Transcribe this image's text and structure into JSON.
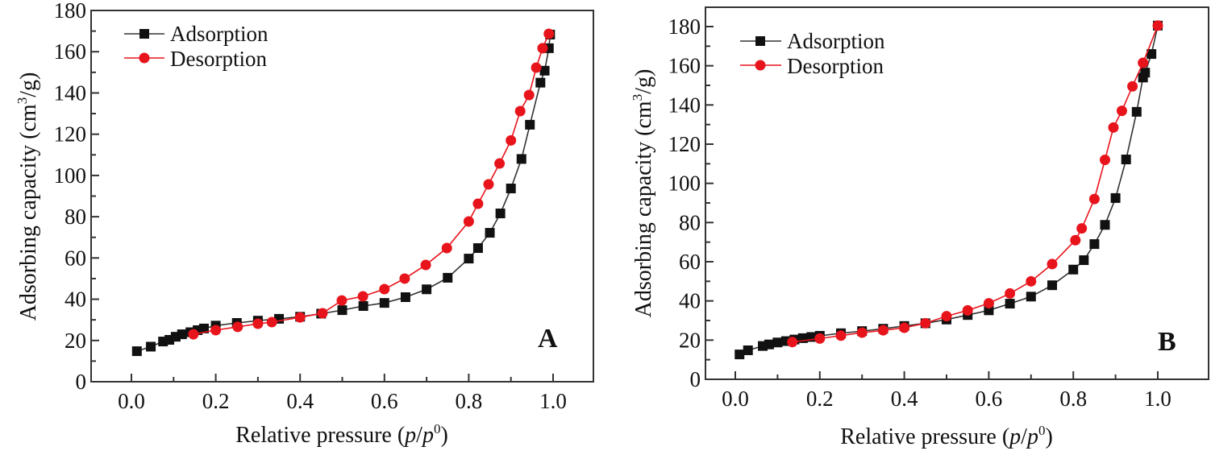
{
  "colors": {
    "adsorption": "#111111",
    "desorption": "#e8141c",
    "axis": "#333333"
  },
  "chart_data": [
    {
      "type": "line",
      "panel_label": "A",
      "xlabel_main": "Relative pressure (",
      "xlabel_italic1": "p",
      "xlabel_slash": "/",
      "xlabel_italic2": "p",
      "xlabel_sup": "0",
      "xlabel_close": ")",
      "ylabel_main": "Adsorbing capacity (cm",
      "ylabel_sup": "3",
      "ylabel_close": "/g)",
      "xlim": [
        -0.1,
        1.1
      ],
      "ylim": [
        0,
        180
      ],
      "xticks": [
        "0.0",
        "0.2",
        "0.4",
        "0.6",
        "0.8",
        "1.0"
      ],
      "xtick_values": [
        0.0,
        0.2,
        0.4,
        0.6,
        0.8,
        1.0
      ],
      "yticks": [
        "0",
        "20",
        "40",
        "60",
        "80",
        "100",
        "120",
        "140",
        "160",
        "180"
      ],
      "ytick_values": [
        0,
        20,
        40,
        60,
        80,
        100,
        120,
        140,
        160,
        180
      ],
      "grid": false,
      "legend_position": "top-left",
      "series": [
        {
          "name": "Adsorption",
          "marker": "square",
          "x": [
            0.013,
            0.046,
            0.075,
            0.09,
            0.105,
            0.12,
            0.14,
            0.157,
            0.172,
            0.2,
            0.25,
            0.3,
            0.35,
            0.4,
            0.45,
            0.5,
            0.55,
            0.6,
            0.65,
            0.7,
            0.75,
            0.8,
            0.822,
            0.85,
            0.875,
            0.9,
            0.925,
            0.945,
            0.97,
            0.98,
            0.99,
            0.993
          ],
          "y": [
            14.8,
            17.0,
            19.5,
            20.3,
            21.8,
            23.0,
            24.0,
            25.0,
            25.8,
            27.2,
            28.5,
            29.6,
            30.5,
            31.5,
            33.0,
            34.7,
            36.7,
            38.2,
            41.0,
            44.8,
            50.4,
            59.7,
            64.8,
            72.2,
            81.6,
            93.7,
            108.0,
            124.6,
            145.0,
            150.8,
            161.7,
            168.3
          ]
        },
        {
          "name": "Desorption",
          "marker": "circle",
          "x": [
            0.99,
            0.975,
            0.96,
            0.943,
            0.922,
            0.9,
            0.873,
            0.847,
            0.822,
            0.8,
            0.748,
            0.698,
            0.648,
            0.6,
            0.549,
            0.499,
            0.453,
            0.4,
            0.333,
            0.3,
            0.252,
            0.2,
            0.147
          ],
          "y": [
            168.7,
            161.7,
            152.3,
            139.0,
            131.2,
            117.0,
            105.8,
            95.7,
            86.3,
            77.7,
            64.8,
            56.6,
            50.0,
            44.9,
            41.4,
            39.4,
            33.2,
            31.2,
            28.9,
            28.1,
            26.6,
            25.0,
            23.0
          ]
        }
      ]
    },
    {
      "type": "line",
      "panel_label": "B",
      "xlabel_main": "Relative pressure (",
      "xlabel_italic1": "p",
      "xlabel_slash": "/",
      "xlabel_italic2": "p",
      "xlabel_sup": "0",
      "xlabel_close": ")",
      "ylabel_main": "Adsorbing capacity (cm",
      "ylabel_sup": "3",
      "ylabel_close": "/g)",
      "xlim": [
        -0.1,
        1.1
      ],
      "ylim": [
        0,
        190
      ],
      "xticks": [
        "0.0",
        "0.2",
        "0.4",
        "0.6",
        "0.8",
        "1.0"
      ],
      "xtick_values": [
        0.0,
        0.2,
        0.4,
        0.6,
        0.8,
        1.0
      ],
      "yticks": [
        "0",
        "20",
        "40",
        "60",
        "80",
        "100",
        "120",
        "140",
        "160",
        "180"
      ],
      "ytick_values": [
        0,
        20,
        40,
        60,
        80,
        100,
        120,
        140,
        160,
        180
      ],
      "grid": false,
      "legend_position": "top-left",
      "series": [
        {
          "name": "Adsorption",
          "marker": "square",
          "x": [
            0.01,
            0.03,
            0.065,
            0.08,
            0.1,
            0.12,
            0.14,
            0.16,
            0.18,
            0.2,
            0.25,
            0.3,
            0.35,
            0.4,
            0.45,
            0.5,
            0.55,
            0.6,
            0.65,
            0.7,
            0.75,
            0.8,
            0.825,
            0.85,
            0.875,
            0.9,
            0.925,
            0.95,
            0.965,
            0.97,
            0.985,
            1.0
          ],
          "y": [
            12.7,
            14.8,
            17.0,
            17.8,
            18.8,
            19.5,
            20.3,
            21.0,
            21.6,
            22.2,
            23.5,
            24.6,
            25.8,
            27.2,
            28.6,
            30.5,
            32.8,
            35.2,
            38.6,
            42.2,
            48.0,
            56.0,
            60.8,
            69.0,
            78.8,
            92.5,
            112.2,
            136.5,
            154.0,
            156.5,
            166.0,
            180.5
          ]
        },
        {
          "name": "Desorption",
          "marker": "circle",
          "x": [
            1.0,
            0.965,
            0.94,
            0.915,
            0.895,
            0.875,
            0.85,
            0.82,
            0.805,
            0.75,
            0.7,
            0.65,
            0.6,
            0.55,
            0.5,
            0.45,
            0.4,
            0.35,
            0.3,
            0.25,
            0.2,
            0.135
          ],
          "y": [
            180.5,
            161.5,
            149.5,
            137.0,
            128.5,
            112.0,
            92.0,
            77.0,
            71.0,
            58.8,
            50.0,
            43.8,
            38.8,
            35.2,
            32.2,
            28.6,
            26.3,
            25.0,
            23.8,
            22.3,
            20.8,
            19.0
          ]
        }
      ]
    }
  ]
}
